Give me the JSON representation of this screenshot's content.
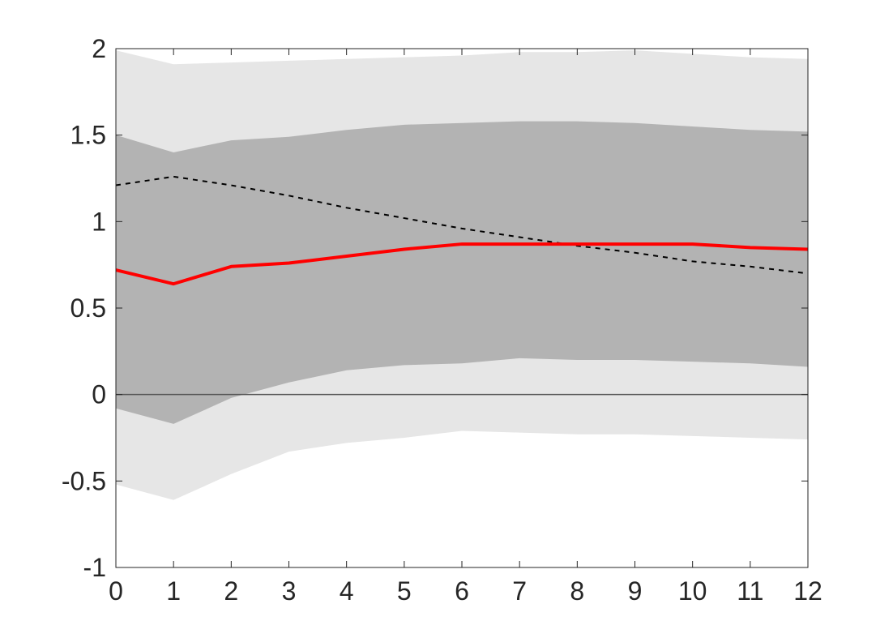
{
  "chart_data": {
    "type": "line",
    "title": "",
    "xlabel": "",
    "ylabel": "",
    "xlim": [
      0,
      12
    ],
    "ylim": [
      -1,
      2
    ],
    "x": [
      0,
      1,
      2,
      3,
      4,
      5,
      6,
      7,
      8,
      9,
      10,
      11,
      12
    ],
    "x_ticks": [
      "0",
      "1",
      "2",
      "3",
      "4",
      "5",
      "6",
      "7",
      "8",
      "9",
      "10",
      "11",
      "12"
    ],
    "y_ticks": [
      {
        "value": -1,
        "label": "-1"
      },
      {
        "value": -0.5,
        "label": "-0.5"
      },
      {
        "value": 0,
        "label": "0"
      },
      {
        "value": 0.5,
        "label": "0.5"
      },
      {
        "value": 1,
        "label": "1"
      },
      {
        "value": 1.5,
        "label": "1.5"
      },
      {
        "value": 2,
        "label": "2"
      }
    ],
    "grid": false,
    "reference_line_y": 0,
    "bands": [
      {
        "color": "#e6e6e6",
        "lower": [
          -0.52,
          -0.61,
          -0.46,
          -0.33,
          -0.28,
          -0.25,
          -0.21,
          -0.22,
          -0.23,
          -0.23,
          -0.24,
          -0.25,
          -0.26
        ],
        "upper": [
          1.99,
          1.91,
          1.92,
          1.93,
          1.94,
          1.95,
          1.96,
          1.98,
          1.98,
          1.99,
          1.97,
          1.95,
          1.94
        ]
      },
      {
        "color": "#b3b3b3",
        "lower": [
          -0.08,
          -0.17,
          -0.02,
          0.07,
          0.14,
          0.17,
          0.18,
          0.21,
          0.2,
          0.2,
          0.19,
          0.18,
          0.16
        ],
        "upper": [
          1.5,
          1.4,
          1.47,
          1.49,
          1.53,
          1.56,
          1.57,
          1.58,
          1.58,
          1.57,
          1.55,
          1.53,
          1.52
        ]
      }
    ],
    "series": [
      {
        "color": "#ff0000",
        "style": "solid",
        "values": [
          0.72,
          0.64,
          0.74,
          0.76,
          0.8,
          0.84,
          0.87,
          0.87,
          0.87,
          0.87,
          0.87,
          0.85,
          0.84
        ]
      },
      {
        "color": "#000000",
        "style": "dashed",
        "values": [
          1.21,
          1.26,
          1.21,
          1.15,
          1.08,
          1.02,
          0.96,
          0.91,
          0.86,
          0.82,
          0.77,
          0.74,
          0.7
        ]
      }
    ]
  }
}
